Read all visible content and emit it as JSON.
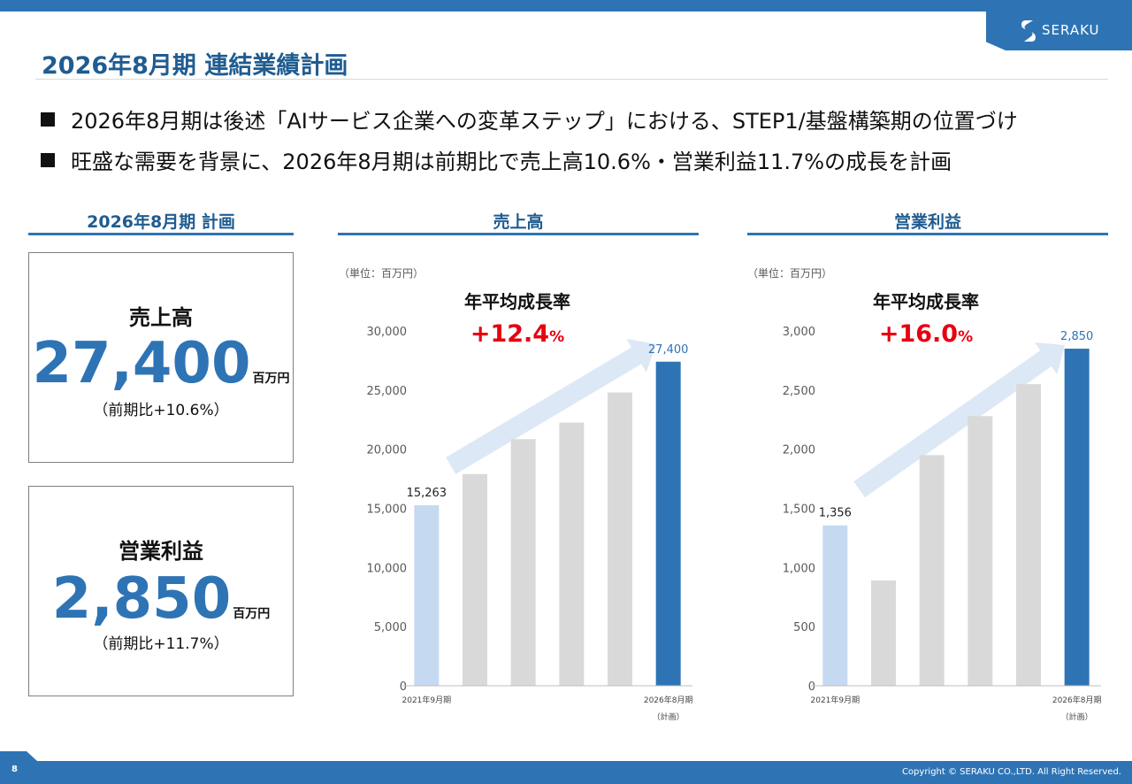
{
  "brand": {
    "name": "SERAKU"
  },
  "page_title": "2026年8月期 連結業績計画",
  "bullets": [
    "2026年8月期は後述「AIサービス企業への変革ステップ」における、STEP1/基盤構築期の位置づけ",
    "旺盛な需要を背景に、2026年8月期は前期比で売上高10.6%・営業利益11.7%の成長を計画"
  ],
  "plan": {
    "heading": "2026年8月期 計画",
    "sales": {
      "label": "売上高",
      "value": "27,400",
      "unit": "百万円",
      "yoy": "（前期比+10.6%）"
    },
    "op": {
      "label": "営業利益",
      "value": "2,850",
      "unit": "百万円",
      "yoy": "（前期比+11.7%）"
    }
  },
  "colors": {
    "primary": "#2e74b5",
    "light_bar": "#c5d9f1",
    "grey_bar": "#d9d9d9",
    "red": "#e60012",
    "arrow": "#dce8f5"
  },
  "chart_data": [
    {
      "type": "bar",
      "title": "売上高",
      "unit_note": "（単位：百万円）",
      "cagr_label": "年平均成長率",
      "cagr_value": "+12.4",
      "cagr_pct": "%",
      "categories": [
        "2021年9月期",
        "",
        "",
        "",
        "",
        "2026年8月期"
      ],
      "category_note": "（計画）",
      "values": [
        15263,
        17900,
        20850,
        22250,
        24800,
        27400
      ],
      "value_labels": [
        "15,263",
        "",
        "",
        "",
        "",
        "27,400"
      ],
      "ylim": [
        0,
        30000
      ],
      "yticks": [
        0,
        5000,
        10000,
        15000,
        20000,
        25000,
        30000
      ],
      "ytick_labels": [
        "0",
        "5,000",
        "10,000",
        "15,000",
        "20,000",
        "25,000",
        "30,000"
      ],
      "arrow_data": {
        "x_start": 0.5,
        "y_start": 18600,
        "x_end": 4.75,
        "y_end": 28900
      }
    },
    {
      "type": "bar",
      "title": "営業利益",
      "unit_note": "（単位：百万円）",
      "cagr_label": "年平均成長率",
      "cagr_value": "+16.0",
      "cagr_pct": "%",
      "categories": [
        "2021年9月期",
        "",
        "",
        "",
        "",
        "2026年8月期"
      ],
      "category_note": "（計画）",
      "values": [
        1356,
        890,
        1950,
        2280,
        2550,
        2850
      ],
      "value_labels": [
        "1,356",
        "",
        "",
        "",
        "",
        "2,850"
      ],
      "ylim": [
        0,
        3000
      ],
      "yticks": [
        0,
        500,
        1000,
        1500,
        2000,
        2500,
        3000
      ],
      "ytick_labels": [
        "0",
        "500",
        "1,000",
        "1,500",
        "2,000",
        "2,500",
        "3,000"
      ],
      "arrow_data": {
        "x_start": 0.5,
        "y_start": 1660,
        "x_end": 4.75,
        "y_end": 2880
      }
    }
  ],
  "footer": {
    "page": "8",
    "copyright": "Copyright © SERAKU CO.,LTD. All Right Reserved."
  }
}
